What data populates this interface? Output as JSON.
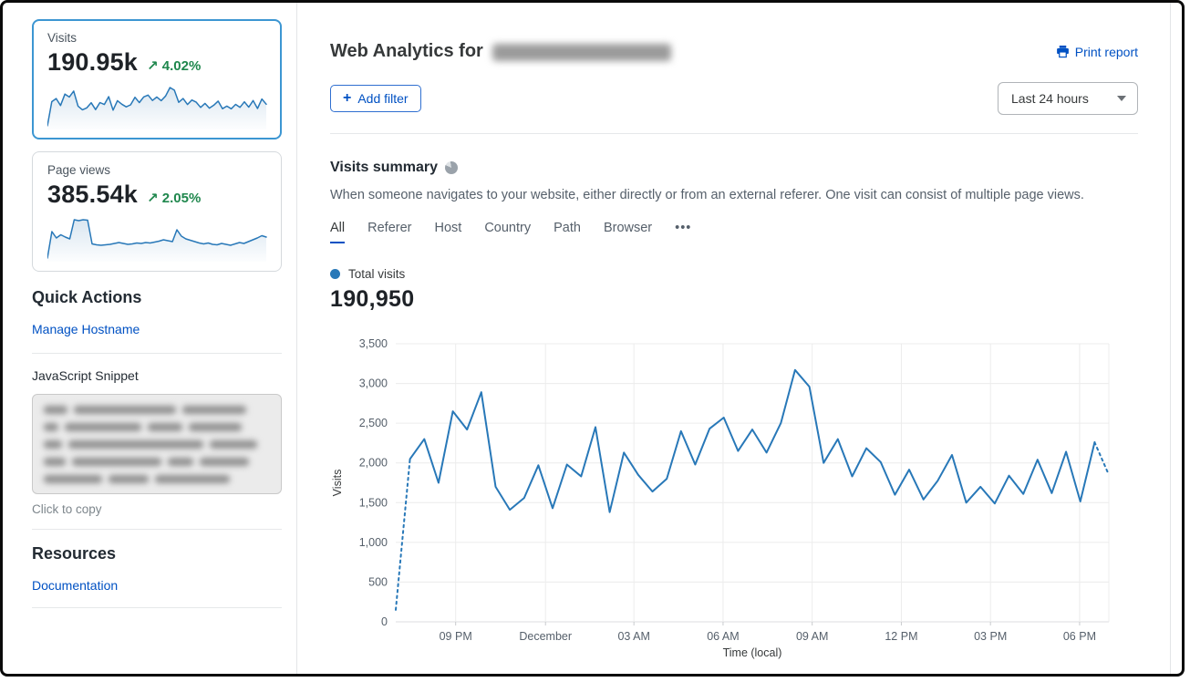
{
  "colors": {
    "link_blue": "#0051c3",
    "chart_blue": "#2878b8",
    "positive_green": "#1f874d",
    "selected_card_border": "#3c96d2",
    "gridline": "#ececec",
    "axis_text": "#56606b"
  },
  "sidebar": {
    "visits_card": {
      "label": "Visits",
      "value": "190.95k",
      "trend_icon": "↗",
      "delta": "4.02%",
      "sparkline_values": [
        150,
        2050,
        2300,
        1750,
        2650,
        2420,
        2890,
        1700,
        1410,
        1560,
        1970,
        1430,
        1980,
        1830,
        2450,
        1380,
        2130,
        1850,
        1640,
        1800,
        2400,
        1980,
        2430,
        2570,
        2150,
        2420,
        2130,
        2500,
        3170,
        2960,
        2000,
        2300,
        1830,
        2185,
        2010,
        1600,
        1915,
        1540,
        1775,
        2100,
        1500,
        1700,
        1490,
        1840,
        1610,
        2040,
        1620,
        2140,
        1515,
        2260,
        1850
      ]
    },
    "pageviews_card": {
      "label": "Page views",
      "value": "385.54k",
      "trend_icon": "↗",
      "delta": "2.05%",
      "sparkline_values": [
        4,
        62,
        48,
        55,
        50,
        46,
        88,
        86,
        88,
        87,
        35,
        33,
        32,
        33,
        34,
        36,
        38,
        36,
        34,
        35,
        37,
        36,
        38,
        37,
        39,
        41,
        44,
        42,
        40,
        66,
        52,
        46,
        43,
        40,
        37,
        35,
        37,
        34,
        33,
        36,
        34,
        32,
        35,
        38,
        36,
        40,
        44,
        48,
        53,
        50
      ]
    },
    "quick_actions": {
      "title": "Quick Actions",
      "manage_hostname": "Manage Hostname",
      "snippet_label": "JavaScript Snippet",
      "copy_hint": "Click to copy"
    },
    "resources": {
      "title": "Resources",
      "documentation": "Documentation"
    }
  },
  "header": {
    "title_prefix": "Web Analytics for",
    "domain": "(blurred)",
    "print_report": "Print report",
    "add_filter": {
      "icon": "+",
      "label": "Add filter"
    },
    "time_range": "Last 24 hours"
  },
  "summary": {
    "title": "Visits summary",
    "description": "When someone navigates to your website, either directly or from an external referer. One visit can consist of multiple page views.",
    "tabs": [
      "All",
      "Referer",
      "Host",
      "Country",
      "Path",
      "Browser",
      "•••"
    ],
    "active_tab": "All",
    "legend_label": "Total visits",
    "total_value": "190,950"
  },
  "chart_data": {
    "type": "line",
    "title": "Total visits",
    "xlabel": "Time (local)",
    "ylabel": "Visits",
    "ylim": [
      0,
      3500
    ],
    "y_ticks": [
      0,
      500,
      1000,
      1500,
      2000,
      2500,
      3000,
      3500
    ],
    "x_ticks": [
      {
        "label": "09 PM",
        "f": 0.084
      },
      {
        "label": "December",
        "f": 0.21
      },
      {
        "label": "03 AM",
        "f": 0.334
      },
      {
        "label": "06 AM",
        "f": 0.459
      },
      {
        "label": "09 AM",
        "f": 0.584
      },
      {
        "label": "12 PM",
        "f": 0.709
      },
      {
        "label": "03 PM",
        "f": 0.834
      },
      {
        "label": "06 PM",
        "f": 0.959
      }
    ],
    "grid": true,
    "legend_position": "top-left",
    "series": [
      {
        "name": "Total visits",
        "color": "#2878b8",
        "dashed_first_segment": true,
        "dashed_last_segment": true,
        "values": [
          150,
          2050,
          2300,
          1750,
          2650,
          2420,
          2890,
          1700,
          1410,
          1560,
          1970,
          1430,
          1980,
          1830,
          2450,
          1380,
          2130,
          1850,
          1640,
          1800,
          2400,
          1980,
          2430,
          2570,
          2150,
          2420,
          2130,
          2500,
          3170,
          2960,
          2000,
          2300,
          1830,
          2185,
          2010,
          1600,
          1915,
          1540,
          1775,
          2100,
          1500,
          1700,
          1490,
          1840,
          1610,
          2040,
          1620,
          2140,
          1515,
          2260,
          1850
        ]
      }
    ]
  }
}
